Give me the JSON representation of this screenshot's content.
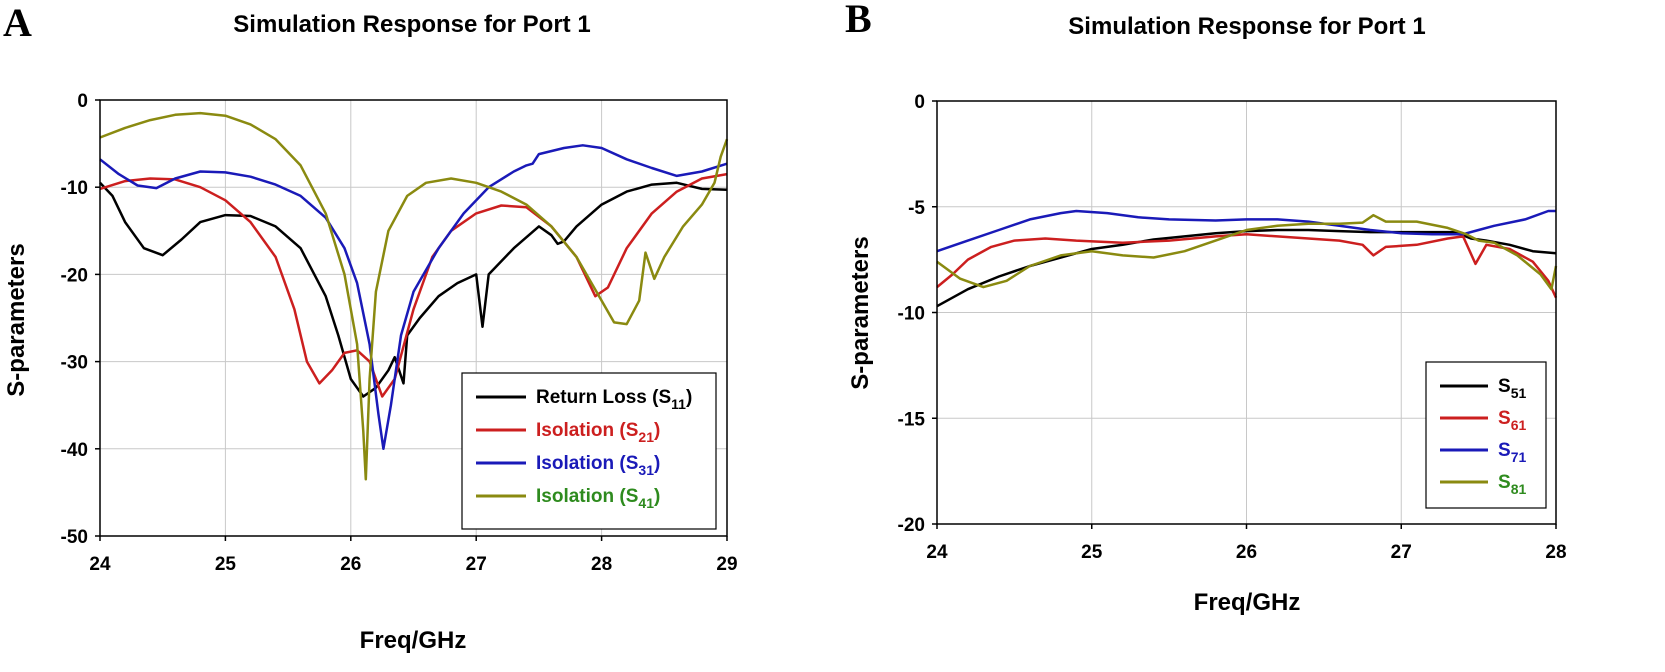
{
  "chart_data": [
    {
      "panel": "A",
      "type": "line",
      "title": "Simulation Response for Port 1",
      "xlabel": "Freq/GHz",
      "ylabel": "S-parameters",
      "xlim": [
        24,
        29
      ],
      "ylim": [
        -50,
        0
      ],
      "xticks": [
        24,
        25,
        26,
        27,
        28,
        29
      ],
      "yticks": [
        0,
        -10,
        -20,
        -30,
        -40,
        -50
      ],
      "grid": true,
      "legend_position": "bottom-right",
      "series": [
        {
          "name": "Return Loss (S11)",
          "label_main": "Return Loss (S",
          "label_sub": "11",
          "label_end": ")",
          "color": "#000000",
          "text_color": "#000000",
          "points": [
            [
              24.0,
              -9.5
            ],
            [
              24.1,
              -11
            ],
            [
              24.2,
              -14
            ],
            [
              24.35,
              -17
            ],
            [
              24.5,
              -17.8
            ],
            [
              24.65,
              -16
            ],
            [
              24.8,
              -14
            ],
            [
              25.0,
              -13.2
            ],
            [
              25.2,
              -13.3
            ],
            [
              25.4,
              -14.5
            ],
            [
              25.6,
              -17
            ],
            [
              25.8,
              -22.5
            ],
            [
              25.9,
              -27
            ],
            [
              26.0,
              -32
            ],
            [
              26.1,
              -34
            ],
            [
              26.2,
              -33
            ],
            [
              26.3,
              -31
            ],
            [
              26.35,
              -29.5
            ],
            [
              26.42,
              -32.5
            ],
            [
              26.45,
              -27
            ],
            [
              26.55,
              -25
            ],
            [
              26.7,
              -22.5
            ],
            [
              26.85,
              -21
            ],
            [
              27.0,
              -20
            ],
            [
              27.05,
              -26
            ],
            [
              27.1,
              -20
            ],
            [
              27.3,
              -17
            ],
            [
              27.5,
              -14.5
            ],
            [
              27.6,
              -15.5
            ],
            [
              27.65,
              -16.5
            ],
            [
              27.7,
              -16.2
            ],
            [
              27.8,
              -14.5
            ],
            [
              28.0,
              -12
            ],
            [
              28.2,
              -10.5
            ],
            [
              28.4,
              -9.7
            ],
            [
              28.6,
              -9.5
            ],
            [
              28.8,
              -10.2
            ],
            [
              29.0,
              -10.3
            ]
          ]
        },
        {
          "name": "Isolation (S21)",
          "label_main": "Isolation (S",
          "label_sub": "21",
          "label_end": ")",
          "color": "#cc1f1f",
          "text_color": "#cc1f1f",
          "points": [
            [
              24.0,
              -10.2
            ],
            [
              24.2,
              -9.3
            ],
            [
              24.4,
              -9.0
            ],
            [
              24.6,
              -9.1
            ],
            [
              24.8,
              -10
            ],
            [
              25.0,
              -11.5
            ],
            [
              25.2,
              -14
            ],
            [
              25.4,
              -18
            ],
            [
              25.55,
              -24
            ],
            [
              25.65,
              -30
            ],
            [
              25.75,
              -32.5
            ],
            [
              25.85,
              -31
            ],
            [
              25.95,
              -29
            ],
            [
              26.05,
              -28.7
            ],
            [
              26.15,
              -30
            ],
            [
              26.25,
              -34
            ],
            [
              26.35,
              -32
            ],
            [
              26.5,
              -24
            ],
            [
              26.65,
              -18
            ],
            [
              26.8,
              -15
            ],
            [
              27.0,
              -13
            ],
            [
              27.2,
              -12.1
            ],
            [
              27.4,
              -12.3
            ],
            [
              27.6,
              -14.5
            ],
            [
              27.8,
              -18
            ],
            [
              27.95,
              -22.5
            ],
            [
              28.05,
              -21.5
            ],
            [
              28.2,
              -17
            ],
            [
              28.4,
              -13
            ],
            [
              28.6,
              -10.5
            ],
            [
              28.8,
              -9
            ],
            [
              29.0,
              -8.5
            ]
          ]
        },
        {
          "name": "Isolation (S31)",
          "label_main": "Isolation (S",
          "label_sub": "31",
          "label_end": ")",
          "color": "#1a1ab8",
          "text_color": "#1a1ab8",
          "points": [
            [
              24.0,
              -6.8
            ],
            [
              24.15,
              -8.5
            ],
            [
              24.3,
              -9.8
            ],
            [
              24.45,
              -10.1
            ],
            [
              24.6,
              -9
            ],
            [
              24.8,
              -8.2
            ],
            [
              25.0,
              -8.3
            ],
            [
              25.2,
              -8.8
            ],
            [
              25.4,
              -9.7
            ],
            [
              25.6,
              -11
            ],
            [
              25.8,
              -13.5
            ],
            [
              25.95,
              -17
            ],
            [
              26.05,
              -21
            ],
            [
              26.15,
              -28
            ],
            [
              26.22,
              -36
            ],
            [
              26.26,
              -40
            ],
            [
              26.32,
              -35
            ],
            [
              26.4,
              -27
            ],
            [
              26.5,
              -22
            ],
            [
              26.7,
              -17
            ],
            [
              26.9,
              -13
            ],
            [
              27.1,
              -10
            ],
            [
              27.3,
              -8.2
            ],
            [
              27.4,
              -7.5
            ],
            [
              27.45,
              -7.3
            ],
            [
              27.5,
              -6.2
            ],
            [
              27.7,
              -5.5
            ],
            [
              27.85,
              -5.2
            ],
            [
              28.0,
              -5.5
            ],
            [
              28.2,
              -6.8
            ],
            [
              28.4,
              -7.8
            ],
            [
              28.6,
              -8.7
            ],
            [
              28.8,
              -8.2
            ],
            [
              29.0,
              -7.3
            ]
          ]
        },
        {
          "name": "Isolation (S41)",
          "label_main": "Isolation (S",
          "label_sub": "41",
          "label_end": ")",
          "color": "#8a8a10",
          "text_color": "#2e8b1e",
          "points": [
            [
              24.0,
              -4.3
            ],
            [
              24.2,
              -3.2
            ],
            [
              24.4,
              -2.3
            ],
            [
              24.6,
              -1.7
            ],
            [
              24.8,
              -1.5
            ],
            [
              25.0,
              -1.8
            ],
            [
              25.2,
              -2.8
            ],
            [
              25.4,
              -4.5
            ],
            [
              25.6,
              -7.5
            ],
            [
              25.8,
              -13
            ],
            [
              25.95,
              -20
            ],
            [
              26.05,
              -28
            ],
            [
              26.1,
              -38
            ],
            [
              26.12,
              -43.5
            ],
            [
              26.15,
              -32
            ],
            [
              26.2,
              -22
            ],
            [
              26.3,
              -15
            ],
            [
              26.45,
              -11
            ],
            [
              26.6,
              -9.5
            ],
            [
              26.8,
              -9
            ],
            [
              27.0,
              -9.5
            ],
            [
              27.2,
              -10.5
            ],
            [
              27.4,
              -12
            ],
            [
              27.6,
              -14.5
            ],
            [
              27.8,
              -18
            ],
            [
              28.0,
              -23
            ],
            [
              28.1,
              -25.5
            ],
            [
              28.2,
              -25.7
            ],
            [
              28.3,
              -23
            ],
            [
              28.35,
              -17.5
            ],
            [
              28.42,
              -20.5
            ],
            [
              28.5,
              -18
            ],
            [
              28.65,
              -14.5
            ],
            [
              28.8,
              -12
            ],
            [
              28.9,
              -9.5
            ],
            [
              28.95,
              -6.5
            ],
            [
              29.0,
              -4.5
            ]
          ]
        }
      ]
    },
    {
      "panel": "B",
      "type": "line",
      "title": "Simulation Response for Port 1",
      "xlabel": "Freq/GHz",
      "ylabel": "S-parameters",
      "xlim": [
        24,
        28
      ],
      "ylim": [
        -20,
        0
      ],
      "xticks": [
        24,
        25,
        26,
        27,
        28
      ],
      "yticks": [
        0,
        -5,
        -10,
        -15,
        -20
      ],
      "grid": true,
      "legend_position": "bottom-right",
      "series": [
        {
          "name": "S51",
          "label_main": "S",
          "label_sub": "51",
          "label_end": "",
          "color": "#000000",
          "text_color": "#000000",
          "points": [
            [
              24.0,
              -9.7
            ],
            [
              24.2,
              -8.9
            ],
            [
              24.4,
              -8.3
            ],
            [
              24.6,
              -7.8
            ],
            [
              24.8,
              -7.4
            ],
            [
              25.0,
              -7.0
            ],
            [
              25.2,
              -6.8
            ],
            [
              25.4,
              -6.55
            ],
            [
              25.6,
              -6.4
            ],
            [
              25.8,
              -6.25
            ],
            [
              26.0,
              -6.15
            ],
            [
              26.2,
              -6.1
            ],
            [
              26.4,
              -6.1
            ],
            [
              26.6,
              -6.15
            ],
            [
              26.8,
              -6.2
            ],
            [
              27.0,
              -6.2
            ],
            [
              27.2,
              -6.2
            ],
            [
              27.35,
              -6.2
            ],
            [
              27.45,
              -6.5
            ],
            [
              27.55,
              -6.6
            ],
            [
              27.7,
              -6.8
            ],
            [
              27.85,
              -7.1
            ],
            [
              28.0,
              -7.2
            ]
          ]
        },
        {
          "name": "S61",
          "label_main": "S",
          "label_sub": "61",
          "label_end": "",
          "color": "#cc1f1f",
          "text_color": "#cc1f1f",
          "points": [
            [
              24.0,
              -8.8
            ],
            [
              24.1,
              -8.2
            ],
            [
              24.2,
              -7.5
            ],
            [
              24.35,
              -6.9
            ],
            [
              24.5,
              -6.6
            ],
            [
              24.7,
              -6.5
            ],
            [
              24.9,
              -6.6
            ],
            [
              25.2,
              -6.7
            ],
            [
              25.5,
              -6.6
            ],
            [
              25.8,
              -6.4
            ],
            [
              26.0,
              -6.3
            ],
            [
              26.2,
              -6.4
            ],
            [
              26.4,
              -6.5
            ],
            [
              26.6,
              -6.6
            ],
            [
              26.75,
              -6.8
            ],
            [
              26.82,
              -7.3
            ],
            [
              26.9,
              -6.9
            ],
            [
              27.1,
              -6.8
            ],
            [
              27.3,
              -6.5
            ],
            [
              27.4,
              -6.4
            ],
            [
              27.48,
              -7.7
            ],
            [
              27.55,
              -6.8
            ],
            [
              27.7,
              -7.0
            ],
            [
              27.85,
              -7.6
            ],
            [
              27.95,
              -8.5
            ],
            [
              28.0,
              -9.3
            ]
          ]
        },
        {
          "name": "S71",
          "label_main": "S",
          "label_sub": "71",
          "label_end": "",
          "color": "#1a1ab8",
          "text_color": "#1a1ab8",
          "points": [
            [
              24.0,
              -7.1
            ],
            [
              24.2,
              -6.6
            ],
            [
              24.4,
              -6.1
            ],
            [
              24.6,
              -5.6
            ],
            [
              24.8,
              -5.3
            ],
            [
              24.9,
              -5.2
            ],
            [
              25.1,
              -5.3
            ],
            [
              25.3,
              -5.5
            ],
            [
              25.5,
              -5.6
            ],
            [
              25.8,
              -5.65
            ],
            [
              26.0,
              -5.6
            ],
            [
              26.2,
              -5.6
            ],
            [
              26.4,
              -5.7
            ],
            [
              26.6,
              -5.9
            ],
            [
              26.8,
              -6.1
            ],
            [
              27.0,
              -6.25
            ],
            [
              27.2,
              -6.3
            ],
            [
              27.4,
              -6.3
            ],
            [
              27.5,
              -6.1
            ],
            [
              27.6,
              -5.9
            ],
            [
              27.8,
              -5.6
            ],
            [
              27.95,
              -5.2
            ],
            [
              28.0,
              -5.2
            ]
          ]
        },
        {
          "name": "S81",
          "label_main": "S",
          "label_sub": "81",
          "label_end": "",
          "color": "#8a8a10",
          "text_color": "#2e8b1e",
          "points": [
            [
              24.0,
              -7.6
            ],
            [
              24.15,
              -8.4
            ],
            [
              24.3,
              -8.8
            ],
            [
              24.45,
              -8.5
            ],
            [
              24.6,
              -7.8
            ],
            [
              24.8,
              -7.3
            ],
            [
              25.0,
              -7.1
            ],
            [
              25.2,
              -7.3
            ],
            [
              25.4,
              -7.4
            ],
            [
              25.6,
              -7.1
            ],
            [
              25.8,
              -6.6
            ],
            [
              26.0,
              -6.1
            ],
            [
              26.2,
              -5.9
            ],
            [
              26.4,
              -5.8
            ],
            [
              26.6,
              -5.8
            ],
            [
              26.75,
              -5.75
            ],
            [
              26.82,
              -5.4
            ],
            [
              26.9,
              -5.7
            ],
            [
              27.1,
              -5.7
            ],
            [
              27.3,
              -6.0
            ],
            [
              27.42,
              -6.3
            ],
            [
              27.5,
              -6.6
            ],
            [
              27.6,
              -6.7
            ],
            [
              27.75,
              -7.3
            ],
            [
              27.9,
              -8.2
            ],
            [
              27.97,
              -8.9
            ],
            [
              28.0,
              -7.8
            ]
          ]
        }
      ]
    }
  ]
}
